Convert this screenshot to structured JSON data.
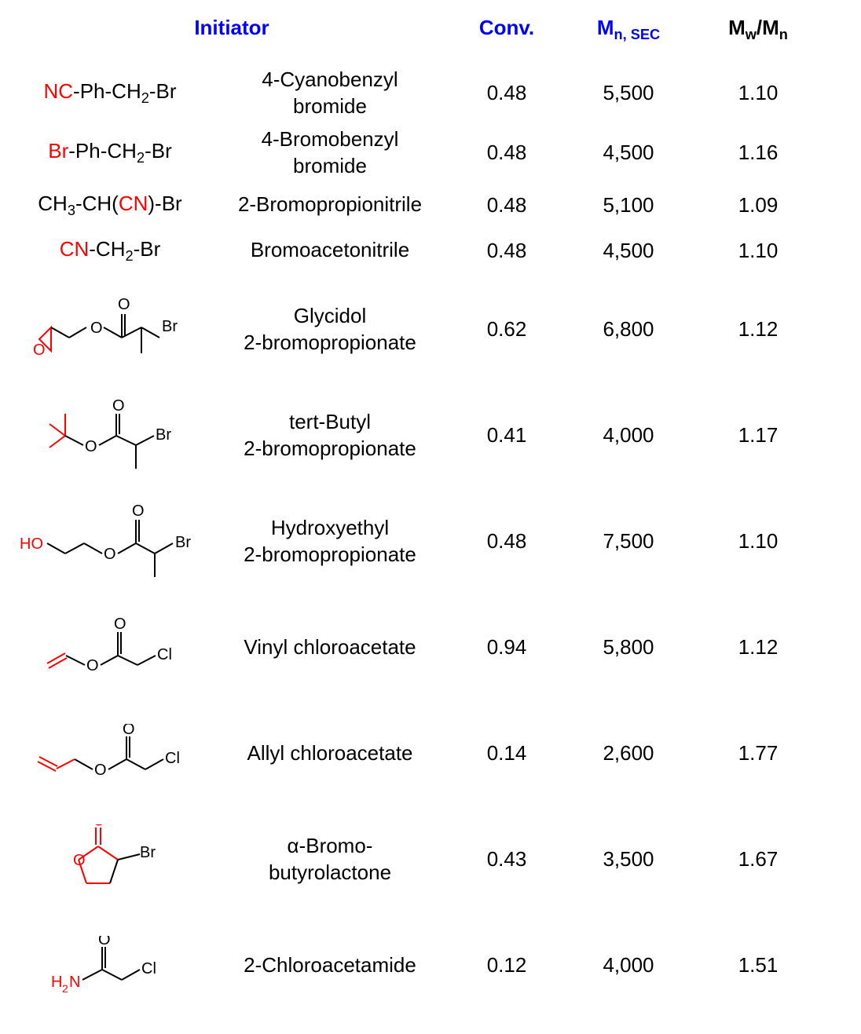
{
  "headers": {
    "initiator": "Initiator",
    "conv": "Conv.",
    "mnsec_base": "M",
    "mnsec_sub": "n, SEC",
    "mwmn_m1": "M",
    "mwmn_w": "w",
    "mwmn_slash": "/",
    "mwmn_m2": "M",
    "mwmn_n": "n"
  },
  "rows": [
    {
      "formula": [
        {
          "t": "NC",
          "c": "red"
        },
        {
          "t": "-Ph-CH"
        },
        {
          "t": "2",
          "sub": true
        },
        {
          "t": "-Br"
        }
      ],
      "name_l1": "4-Cyanobenzyl",
      "name_l2": "bromide",
      "conv": "0.48",
      "mn": "5,500",
      "pdi": "1.10",
      "h": "short",
      "svg": null
    },
    {
      "formula": [
        {
          "t": "Br",
          "c": "red"
        },
        {
          "t": "-Ph-CH"
        },
        {
          "t": "2",
          "sub": true
        },
        {
          "t": "-Br"
        }
      ],
      "name_l1": "4-Bromobenzyl",
      "name_l2": "bromide",
      "conv": "0.48",
      "mn": "4,500",
      "pdi": "1.16",
      "h": "short",
      "svg": null
    },
    {
      "formula": [
        {
          "t": "CH"
        },
        {
          "t": "3",
          "sub": true
        },
        {
          "t": "-CH("
        },
        {
          "t": "CN",
          "c": "red"
        },
        {
          "t": ")-Br"
        }
      ],
      "name_l1": "2-Bromopropionitrile",
      "name_l2": "",
      "conv": "0.48",
      "mn": "5,100",
      "pdi": "1.09",
      "h": "short",
      "svg": null
    },
    {
      "formula": [
        {
          "t": "CN",
          "c": "red"
        },
        {
          "t": "-CH"
        },
        {
          "t": "2",
          "sub": true
        },
        {
          "t": "-Br"
        }
      ],
      "name_l1": "Bromoacetonitrile",
      "name_l2": "",
      "conv": "0.48",
      "mn": "4,500",
      "pdi": "1.10",
      "h": "short",
      "svg": null
    },
    {
      "svg": "glycidol",
      "name_l1": "Glycidol",
      "name_l2": "2-bromopropionate",
      "conv": "0.62",
      "mn": "6,800",
      "pdi": "1.12",
      "h": "tall"
    },
    {
      "svg": "tertbutyl",
      "name_l1": "tert-Butyl",
      "name_l2": "2-bromopropionate",
      "conv": "0.41",
      "mn": "4,000",
      "pdi": "1.17",
      "h": "tall"
    },
    {
      "svg": "hydroxyethyl",
      "name_l1": "Hydroxyethyl",
      "name_l2": "2-bromopropionate",
      "conv": "0.48",
      "mn": "7,500",
      "pdi": "1.10",
      "h": "tall"
    },
    {
      "svg": "vinyl",
      "name_l1": "Vinyl chloroacetate",
      "name_l2": "",
      "conv": "0.94",
      "mn": "5,800",
      "pdi": "1.12",
      "h": "tall"
    },
    {
      "svg": "allyl",
      "name_l1": "Allyl chloroacetate",
      "name_l2": "",
      "conv": "0.14",
      "mn": "2,600",
      "pdi": "1.77",
      "h": "tall"
    },
    {
      "svg": "lactone",
      "name_l1": "α-Bromo-",
      "name_l2": "butyrolactone",
      "conv": "0.43",
      "mn": "3,500",
      "pdi": "1.67",
      "h": "tall"
    },
    {
      "svg": "chloroacetamide",
      "name_l1": "2-Chloroacetamide",
      "name_l2": "",
      "conv": "0.12",
      "mn": "4,000",
      "pdi": "1.51",
      "h": "tall"
    }
  ],
  "labels": {
    "O": "O",
    "Br": "Br",
    "Cl": "Cl",
    "HO": "HO",
    "H2N_h": "H",
    "H2N_2": "2",
    "H2N_n": "N"
  },
  "colors": {
    "header": "#0000ff",
    "red": "#ff0000",
    "black": "#000000",
    "bg": "#ffffff"
  },
  "font": {
    "family": "Arial",
    "body_size": 26,
    "svg_label_size": 20
  }
}
